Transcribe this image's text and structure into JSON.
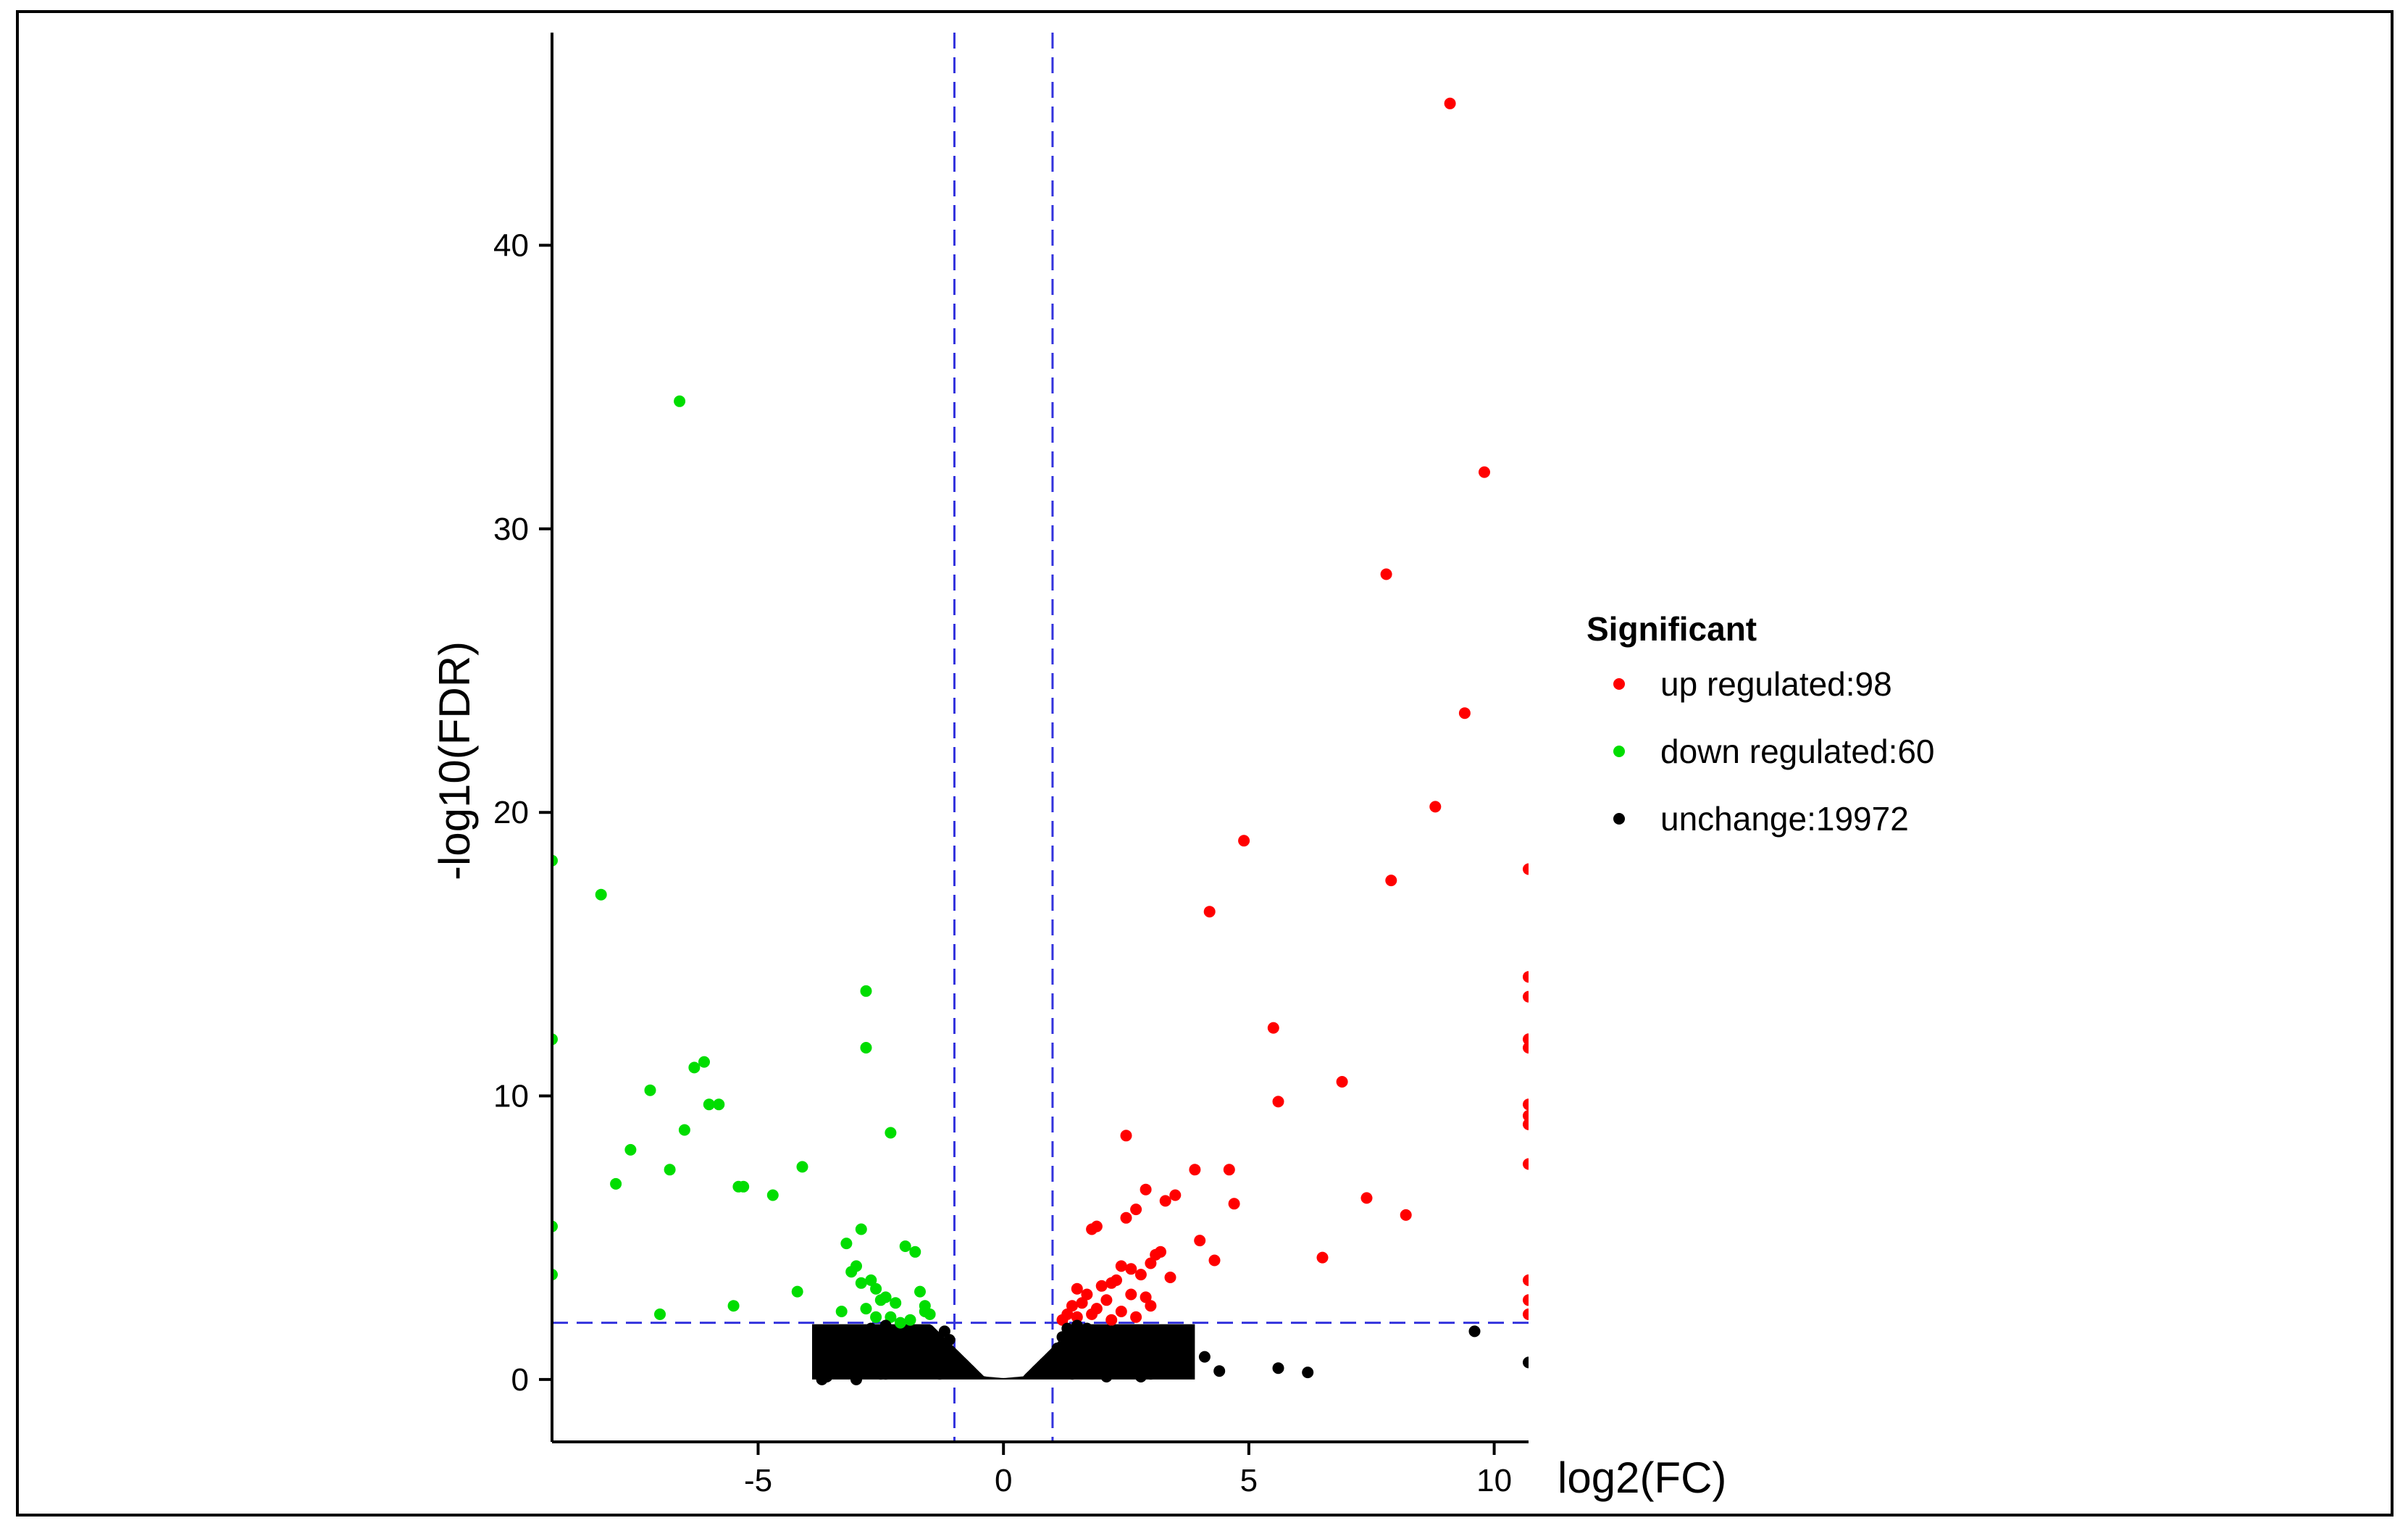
{
  "chart_data": {
    "type": "scatter",
    "title": "",
    "xlabel": "log2(FC)",
    "ylabel": "-log10(FDR)",
    "xlim": [
      -9.2,
      10.7
    ],
    "ylim": [
      -2.2,
      47.5
    ],
    "xticks": [
      -5,
      0,
      5,
      10
    ],
    "yticks": [
      0,
      10,
      20,
      30,
      40
    ],
    "thresholds": {
      "fc_left": -1,
      "fc_right": 1,
      "fdr": 2
    },
    "threshold_color": "#3333dd",
    "legend": {
      "title": "Significant",
      "entries": [
        {
          "key": "up",
          "label": "up regulated:98",
          "color": "#ff0000"
        },
        {
          "key": "down",
          "label": "down regulated:60",
          "color": "#00dd00"
        },
        {
          "key": "unchange",
          "label": "unchange:19972",
          "color": "#000000"
        }
      ]
    },
    "series": [
      {
        "name": "up regulated",
        "color": "#ff0000",
        "x": [
          9.1,
          9.8,
          7.8,
          9.4,
          8.8,
          4.9,
          7.9,
          10.7,
          4.2,
          5.5,
          6.9,
          5.6,
          10.7,
          10.7,
          10.7,
          10.7,
          10.7,
          10.7,
          10.7,
          10.7,
          2.5,
          3.9,
          4.6,
          2.9,
          3.3,
          3.5,
          7.4,
          4.7,
          8.2,
          1.8,
          1.9,
          2.5,
          2.7,
          3.1,
          3.2,
          3.0,
          4.3,
          6.5,
          4.0,
          2.4,
          2.6,
          3.4,
          2.2,
          2.8,
          1.5,
          1.7,
          2.0,
          2.3,
          2.9,
          1.4,
          1.6,
          2.1,
          2.6,
          3.0,
          1.3,
          1.9,
          2.4,
          2.7,
          1.2,
          1.5,
          1.8,
          2.2,
          10.7,
          10.7,
          10.7
        ],
        "y": [
          45.0,
          32.0,
          28.4,
          23.5,
          20.2,
          19.0,
          17.6,
          18.0,
          16.5,
          12.4,
          10.5,
          9.8,
          14.2,
          13.5,
          12.0,
          11.7,
          9.7,
          9.3,
          9.0,
          7.6,
          8.6,
          7.4,
          7.4,
          6.7,
          6.3,
          6.5,
          6.4,
          6.2,
          5.8,
          5.3,
          5.4,
          5.7,
          6.0,
          4.4,
          4.5,
          4.1,
          4.2,
          4.3,
          4.9,
          4.0,
          3.9,
          3.6,
          3.4,
          3.7,
          3.2,
          3.0,
          3.3,
          3.5,
          2.9,
          2.6,
          2.7,
          2.8,
          3.0,
          2.6,
          2.3,
          2.5,
          2.4,
          2.2,
          2.1,
          2.2,
          2.3,
          2.1,
          3.5,
          2.8,
          2.3
        ],
        "count": 98
      },
      {
        "name": "down regulated",
        "color": "#00dd00",
        "x": [
          -6.6,
          -9.2,
          -8.2,
          -2.8,
          -2.8,
          -9.2,
          -6.1,
          -6.3,
          -7.2,
          -5.8,
          -6.0,
          -6.5,
          -7.6,
          -2.3,
          -4.1,
          -6.8,
          -5.3,
          -5.4,
          -4.7,
          -7.9,
          -9.2,
          -9.2,
          -3.2,
          -2.9,
          -2.0,
          -1.8,
          -3.0,
          -2.7,
          -2.6,
          -3.1,
          -2.4,
          -2.2,
          -1.7,
          -1.6,
          -4.2,
          -2.9,
          -2.5,
          -5.5,
          -7.0,
          -3.3,
          -2.8,
          -2.3,
          -1.9,
          -1.5,
          -2.6,
          -2.1,
          -1.6
        ],
        "y": [
          34.5,
          18.3,
          17.1,
          13.7,
          11.7,
          12.0,
          11.2,
          11.0,
          10.2,
          9.7,
          9.7,
          8.8,
          8.1,
          8.7,
          7.5,
          7.4,
          6.8,
          6.8,
          6.5,
          6.9,
          5.4,
          3.7,
          4.8,
          5.3,
          4.7,
          4.5,
          4.0,
          3.5,
          3.2,
          3.8,
          2.9,
          2.7,
          3.1,
          2.6,
          3.1,
          3.4,
          2.8,
          2.6,
          2.3,
          2.4,
          2.5,
          2.2,
          2.1,
          2.3,
          2.2,
          2.0,
          2.4
        ],
        "count": 60
      },
      {
        "name": "unchange",
        "color": "#000000",
        "x": [
          9.6,
          10.7,
          5.6,
          6.2,
          4.4,
          4.1,
          3.6,
          3.3,
          3.0,
          -3.7,
          -3.5,
          -3.3,
          -3.1,
          -2.9,
          -2.7,
          -3.4,
          -3.2,
          -3.0,
          -2.8,
          -2.6,
          -2.4,
          -2.2,
          -2.0,
          -1.8,
          -1.6,
          -1.4,
          -1.2,
          -3.6,
          -3.0,
          -2.5,
          -2.1,
          -1.7,
          -1.3,
          1.3,
          1.5,
          1.7,
          1.9,
          2.1,
          2.3,
          2.5,
          2.7,
          2.9,
          3.1,
          3.3,
          3.5,
          1.4,
          1.8,
          2.2,
          2.6,
          3.0,
          3.4,
          1.2,
          1.6,
          2.0,
          2.4,
          2.8,
          3.2,
          1.1,
          1.5,
          1.9,
          2.3,
          2.7,
          1.3,
          1.7,
          2.1,
          2.5,
          -1.1,
          -1.5,
          -1.9,
          -2.3,
          -2.7,
          -1.2,
          -1.6,
          -2.0,
          -2.4,
          -1.3,
          -1.7,
          -2.1
        ],
        "y": [
          1.7,
          0.6,
          0.4,
          0.25,
          0.3,
          0.8,
          0.5,
          0.9,
          1.2,
          0.0,
          0.3,
          0.6,
          1.1,
          1.5,
          1.8,
          0.8,
          1.3,
          0.4,
          0.9,
          1.6,
          0.2,
          1.0,
          1.4,
          0.5,
          1.2,
          0.7,
          0.3,
          0.1,
          0.0,
          0.2,
          0.6,
          1.7,
          1.0,
          1.8,
          1.4,
          0.9,
          0.5,
          1.6,
          1.1,
          0.3,
          0.8,
          1.3,
          0.6,
          1.0,
          0.4,
          0.2,
          1.2,
          1.7,
          0.7,
          0.2,
          0.9,
          1.5,
          0.6,
          0.3,
          1.0,
          0.1,
          0.4,
          1.1,
          1.9,
          1.5,
          1.3,
          0.8,
          0.4,
          1.8,
          0.1,
          0.5,
          1.4,
          0.9,
          0.3,
          1.1,
          0.6,
          1.7,
          0.6,
          1.3,
          1.9,
          0.2,
          1.1,
          0.8
        ],
        "count": 19972
      }
    ]
  }
}
